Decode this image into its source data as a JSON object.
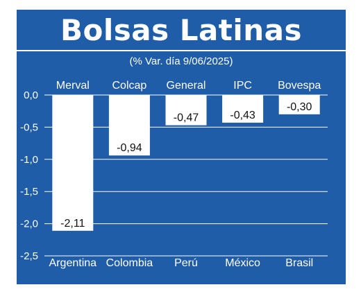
{
  "chart_data": {
    "type": "bar",
    "title": "Bolsas Latinas",
    "subtitle": "(% Var. día 9/06/2025)",
    "index_names": [
      "Merval",
      "Colcap",
      "General",
      "IPC",
      "Bovespa"
    ],
    "categories": [
      "Argentina",
      "Colombia",
      "Perú",
      "México",
      "Brasil"
    ],
    "values": [
      -2.11,
      -0.94,
      -0.47,
      -0.43,
      -0.3
    ],
    "value_labels": [
      "-2,11",
      "-0,94",
      "-0,47",
      "-0,43",
      "-0,30"
    ],
    "y_ticks": [
      0.0,
      -0.5,
      -1.0,
      -1.5,
      -2.0,
      -2.5
    ],
    "y_tick_labels": [
      "0,0",
      "-0,5",
      "-1,0",
      "-1,5",
      "-2,0",
      "-2,5"
    ],
    "ylim": [
      -2.5,
      0.0
    ],
    "grid": true,
    "xlabel": "",
    "ylabel": ""
  },
  "colors": {
    "background": "#1f5da8",
    "bar": "#ffffff",
    "text": "#ffffff",
    "grid": "#ffffff"
  }
}
